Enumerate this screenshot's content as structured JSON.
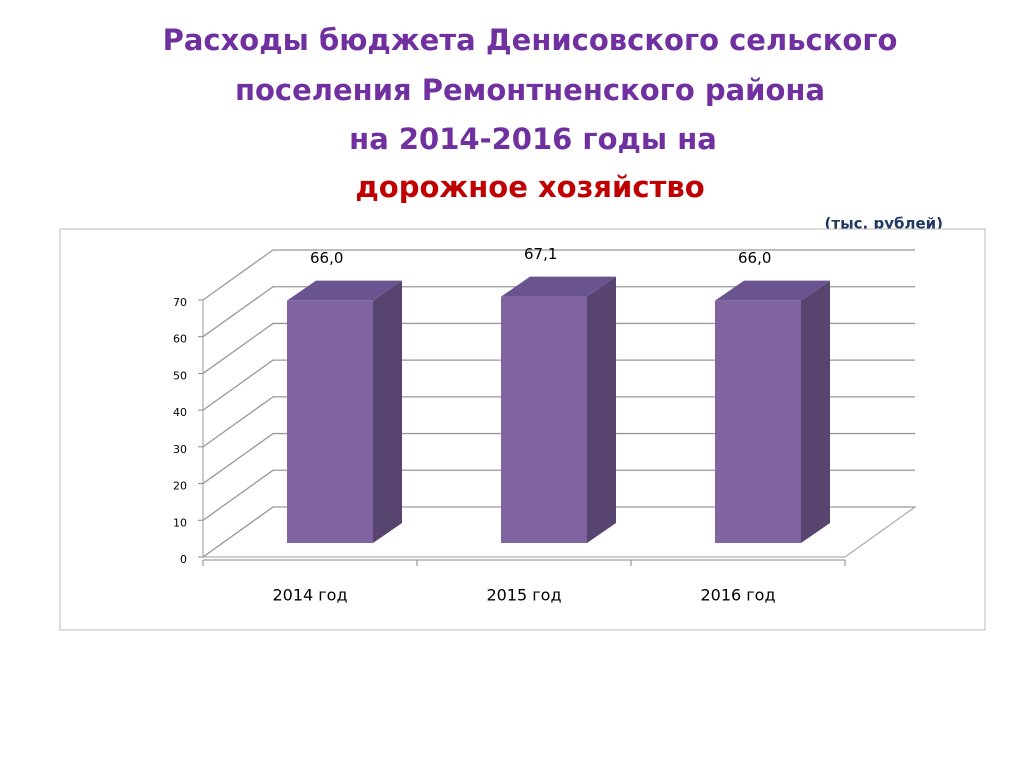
{
  "chart_data": {
    "type": "bar3d",
    "title": [
      "Расходы бюджета Денисовского сельского",
      "поселения Ремонтненского района",
      "на 2014-2016 годы на"
    ],
    "subtitle": "дорожное хозяйство",
    "unit_label": "(тыс. рублей)",
    "categories": [
      "2014 год",
      "2015 год",
      "2016 год"
    ],
    "values": [
      66.0,
      67.1,
      66.0
    ],
    "value_labels": [
      "66,0",
      "67,1",
      "66,0"
    ],
    "color": "#8064a2",
    "ylim": [
      0,
      70
    ],
    "yticks": [
      0,
      10,
      20,
      30,
      40,
      50,
      60,
      70
    ],
    "grid": true
  }
}
